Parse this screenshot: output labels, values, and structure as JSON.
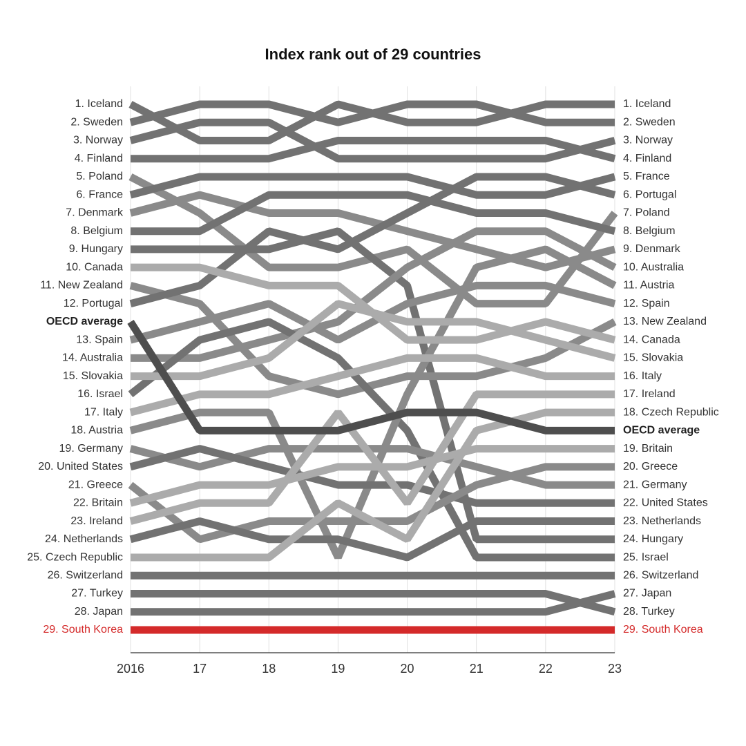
{
  "chart_data": {
    "type": "bump",
    "title": "Index rank out of 29 countries",
    "x": [
      2016,
      2017,
      2018,
      2019,
      2020,
      2021,
      2022,
      2023
    ],
    "xlim": [
      2016,
      2023
    ],
    "xticks": [
      {
        "value": 2016,
        "label": "2016"
      },
      {
        "value": 2017,
        "label": "17"
      },
      {
        "value": 2018,
        "label": "18"
      },
      {
        "value": 2019,
        "label": "19"
      },
      {
        "value": 2020,
        "label": "20"
      },
      {
        "value": 2021,
        "label": "21"
      },
      {
        "value": 2022,
        "label": "22"
      },
      {
        "value": 2023,
        "label": "23"
      }
    ],
    "grid": true,
    "highlight_color": "#d42a2a",
    "series": [
      {
        "left_label": "1. Iceland",
        "right_label": "1. Iceland",
        "color": "#727272",
        "values": [
          1,
          3,
          3,
          1,
          2,
          2,
          1,
          1
        ]
      },
      {
        "left_label": "2. Sweden",
        "right_label": "2. Sweden",
        "color": "#727272",
        "values": [
          2,
          1,
          1,
          2,
          1,
          1,
          2,
          2
        ]
      },
      {
        "left_label": "3. Norway",
        "right_label": "3. Norway",
        "color": "#727272",
        "values": [
          3,
          2,
          2,
          4,
          4,
          4,
          4,
          3
        ]
      },
      {
        "left_label": "4. Finland",
        "right_label": "4. Finland",
        "color": "#727272",
        "values": [
          4,
          4,
          4,
          3,
          3,
          3,
          3,
          4
        ]
      },
      {
        "left_label": "5. Poland",
        "right_label": "7. Poland",
        "color": "#8a8a8a",
        "values": [
          5,
          7,
          10,
          10,
          9,
          12,
          12,
          7
        ]
      },
      {
        "left_label": "6. France",
        "right_label": "5. France",
        "color": "#727272",
        "values": [
          6,
          5,
          5,
          5,
          5,
          6,
          6,
          5
        ]
      },
      {
        "left_label": "7. Denmark",
        "right_label": "9. Denmark",
        "color": "#8a8a8a",
        "values": [
          7,
          6,
          7,
          7,
          8,
          9,
          10,
          9
        ]
      },
      {
        "left_label": "8. Belgium",
        "right_label": "8. Belgium",
        "color": "#727272",
        "values": [
          8,
          8,
          6,
          6,
          6,
          7,
          7,
          8
        ]
      },
      {
        "left_label": "9. Hungary",
        "right_label": "24. Hungary",
        "color": "#727272",
        "values": [
          9,
          9,
          9,
          8,
          11,
          24,
          24,
          24
        ]
      },
      {
        "left_label": "10. Canada",
        "right_label": "14. Canada",
        "color": "#ababab",
        "values": [
          10,
          10,
          11,
          11,
          14,
          14,
          13,
          14
        ]
      },
      {
        "left_label": "11. New Zealand",
        "right_label": "13. New Zealand",
        "color": "#8a8a8a",
        "values": [
          11,
          12,
          16,
          17,
          16,
          16,
          15,
          13
        ]
      },
      {
        "left_label": "12. Portugal",
        "right_label": "6. Portugal",
        "color": "#727272",
        "values": [
          12,
          11,
          8,
          9,
          7,
          5,
          5,
          6
        ]
      },
      {
        "left_label": "OECD average",
        "right_label": "OECD average",
        "color": "#4e4e4e",
        "values": [
          12.5,
          18.5,
          18.5,
          18.5,
          17.5,
          17.5,
          18.5,
          18.5
        ]
      },
      {
        "left_label": "13. Spain",
        "right_label": "12. Spain",
        "color": "#8a8a8a",
        "values": [
          13,
          13,
          12,
          14,
          12,
          11,
          11,
          12
        ]
      },
      {
        "left_label": "14. Australia",
        "right_label": "10. Australia",
        "color": "#8a8a8a",
        "values": [
          14,
          15,
          14,
          13,
          10,
          8,
          8,
          10
        ]
      },
      {
        "left_label": "15. Slovakia",
        "right_label": "15. Slovakia",
        "color": "#ababab",
        "values": [
          15,
          16,
          15,
          12,
          13,
          13,
          14,
          15
        ]
      },
      {
        "left_label": "16. Israel",
        "right_label": "25. Israel",
        "color": "#727272",
        "values": [
          16,
          14,
          13,
          15,
          18,
          25,
          25,
          25
        ]
      },
      {
        "left_label": "17. Italy",
        "right_label": "16. Italy",
        "color": "#ababab",
        "values": [
          17,
          17,
          17,
          16,
          15,
          15,
          16,
          16
        ]
      },
      {
        "left_label": "18. Austria",
        "right_label": "11. Austria",
        "color": "#8a8a8a",
        "values": [
          18,
          18,
          18,
          25,
          17,
          10,
          9,
          11
        ]
      },
      {
        "left_label": "19. Germany",
        "right_label": "21. Germany",
        "color": "#8a8a8a",
        "values": [
          19,
          20,
          19,
          19,
          19,
          20,
          21,
          21
        ]
      },
      {
        "left_label": "20. United States",
        "right_label": "22. United States",
        "color": "#727272",
        "values": [
          20,
          19,
          20,
          21,
          21,
          22,
          22,
          22
        ]
      },
      {
        "left_label": "21. Greece",
        "right_label": "20. Greece",
        "color": "#8a8a8a",
        "values": [
          21,
          24,
          23,
          23,
          23,
          21,
          20,
          20
        ]
      },
      {
        "left_label": "22. Britain",
        "right_label": "19. Britain",
        "color": "#ababab",
        "values": [
          22,
          21,
          21,
          20,
          20,
          19,
          19,
          19
        ]
      },
      {
        "left_label": "23. Ireland",
        "right_label": "17. Ireland",
        "color": "#ababab",
        "values": [
          23,
          22,
          22,
          18,
          22,
          17,
          17,
          17
        ]
      },
      {
        "left_label": "24. Netherlands",
        "right_label": "23. Netherlands",
        "color": "#727272",
        "values": [
          24,
          23,
          24,
          24,
          25,
          23,
          23,
          23
        ]
      },
      {
        "left_label": "25. Czech Republic",
        "right_label": "18. Czech Republic",
        "color": "#ababab",
        "values": [
          25,
          25,
          25,
          22,
          24,
          18,
          18,
          18
        ]
      },
      {
        "left_label": "26. Switzerland",
        "right_label": "26. Switzerland",
        "color": "#727272",
        "values": [
          26,
          26,
          26,
          26,
          26,
          26,
          26,
          26
        ]
      },
      {
        "left_label": "27. Turkey",
        "right_label": "28. Turkey",
        "color": "#727272",
        "values": [
          27,
          27,
          27,
          27,
          27,
          27,
          27,
          28
        ]
      },
      {
        "left_label": "28. Japan",
        "right_label": "27. Japan",
        "color": "#727272",
        "values": [
          28,
          28,
          28,
          28,
          28,
          28,
          28,
          27
        ]
      },
      {
        "left_label": "29. South Korea",
        "right_label": "29. South Korea",
        "color": "#d42a2a",
        "values": [
          29,
          29,
          29,
          29,
          29,
          29,
          29,
          29
        ]
      }
    ]
  }
}
